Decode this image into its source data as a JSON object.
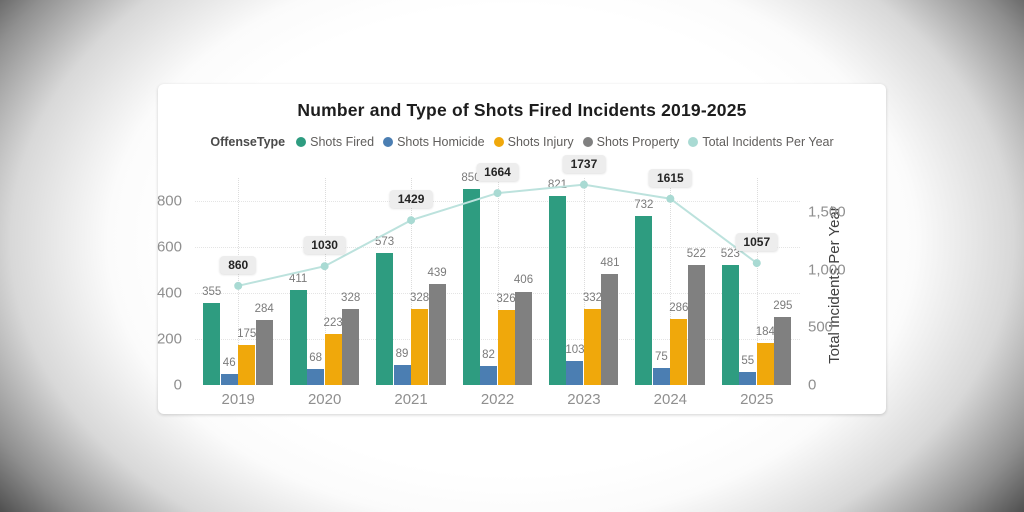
{
  "title": "Number and Type of Shots Fired Incidents 2019-2025",
  "legend": {
    "label": "OffenseType",
    "items": [
      {
        "name": "Shots Fired",
        "color": "#2E9C80"
      },
      {
        "name": "Shots Homicide",
        "color": "#4B7EB2"
      },
      {
        "name": "Shots Injury",
        "color": "#F0A80B"
      },
      {
        "name": "Shots Property",
        "color": "#808080"
      },
      {
        "name": "Total Incidents Per Year",
        "color": "#A9DAD3"
      }
    ]
  },
  "chart_data": {
    "type": "bar",
    "title": "Number and Type of Shots Fired Incidents 2019-2025",
    "categories": [
      "2019",
      "2020",
      "2021",
      "2022",
      "2023",
      "2024",
      "2025"
    ],
    "series": [
      {
        "name": "Shots Fired",
        "color": "#2E9C80",
        "values": [
          355,
          411,
          573,
          850,
          821,
          732,
          523
        ]
      },
      {
        "name": "Shots Homicide",
        "color": "#4B7EB2",
        "values": [
          46,
          68,
          89,
          82,
          103,
          75,
          55
        ]
      },
      {
        "name": "Shots Injury",
        "color": "#F0A80B",
        "values": [
          175,
          223,
          328,
          326,
          332,
          286,
          184
        ]
      },
      {
        "name": "Shots Property",
        "color": "#808080",
        "values": [
          284,
          328,
          439,
          406,
          481,
          522,
          295
        ]
      }
    ],
    "line_series": {
      "name": "Total Incidents Per Year",
      "line_color": "#BCE2DD",
      "marker_color": "#A9DAD3",
      "values": [
        860,
        1030,
        1429,
        1664,
        1737,
        1615,
        1057
      ]
    },
    "left_axis": {
      "ticks": [
        "0",
        "200",
        "400",
        "600",
        "800"
      ],
      "tick_values": [
        0,
        200,
        400,
        600,
        800
      ]
    },
    "right_axis": {
      "title": "Total Incidents Per Year",
      "ticks": [
        "0",
        "500",
        "1,000",
        "1,500"
      ],
      "tick_values": [
        0,
        500,
        1000,
        1500
      ]
    },
    "legend_position": "top",
    "grid": "dotted"
  }
}
